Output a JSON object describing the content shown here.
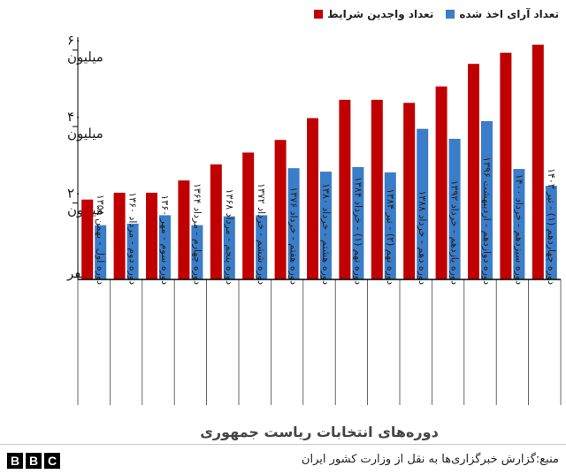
{
  "legend": {
    "eligible_label": "تعداد واجدین شرایط",
    "votes_label": "تعداد آرای اخذ شده"
  },
  "colors": {
    "eligible": "#C00000",
    "votes": "#3A7DC9",
    "axis": "#000000"
  },
  "source_text": "منبع:گزارش خبرگزاری‌ها به نقل از وزارت کشور ایران",
  "logo_letters": [
    "B",
    "B",
    "C"
  ],
  "chart_data": {
    "type": "bar",
    "xlabel": "دوره‌های انتخابات ریاست جمهوری",
    "ylabel": "",
    "ylim": [
      0,
      62
    ],
    "yticks": [
      {
        "value": 0,
        "label": "صفر"
      },
      {
        "value": 20,
        "label": "۲۰ میلیون"
      },
      {
        "value": 40,
        "label": "۴۰ میلیون"
      },
      {
        "value": 60,
        "label": "۶۰ میلیون"
      }
    ],
    "grid": false,
    "legend_position": "top-right",
    "categories": [
      "دوره اول - بهمن ۱۳۵۸",
      "دوره دوم - مرداد ۱۳۶۰",
      "دوره سوم - مهر ۱۳۶۰",
      "دوره چهارم - مرداد ۱۳۶۴",
      "دوره پنجم - مرداد ۱۳۶۸",
      "دوره ششم - خرداد ۱۳۷۲",
      "دوره هفتم - خرداد ۱۳۷۶",
      "دوره هشتم - خرداد ۱۳۸۰",
      "دوره نهم (۱) - خرداد ۱۳۸۴",
      "دوره نهم (۲) - تیر ۱۳۸۴",
      "دوره دهم - خرداد ۱۳۸۸",
      "دوره یازدهم - خرداد ۱۳۹۲",
      "دوره دوازدهم - اردیبهشت ۱۳۹۶",
      "دوره سیزدهم - خرداد ۱۴۰۰",
      "دوره چهاردهم (۱) - تیر ۱۴۰۳"
    ],
    "series": [
      {
        "name": "تعداد واجدین شرایط",
        "values": [
          20.9,
          22.7,
          22.7,
          25.9,
          30.1,
          33.2,
          36.5,
          42.2,
          47.0,
          47.0,
          46.2,
          50.5,
          56.4,
          59.3,
          61.4
        ]
      },
      {
        "name": "تعداد آرای اخذ شده",
        "values": [
          14.2,
          14.6,
          16.8,
          14.2,
          16.5,
          16.8,
          29.1,
          28.2,
          29.4,
          28.0,
          39.4,
          36.8,
          41.4,
          28.9,
          24.5
        ]
      }
    ]
  }
}
